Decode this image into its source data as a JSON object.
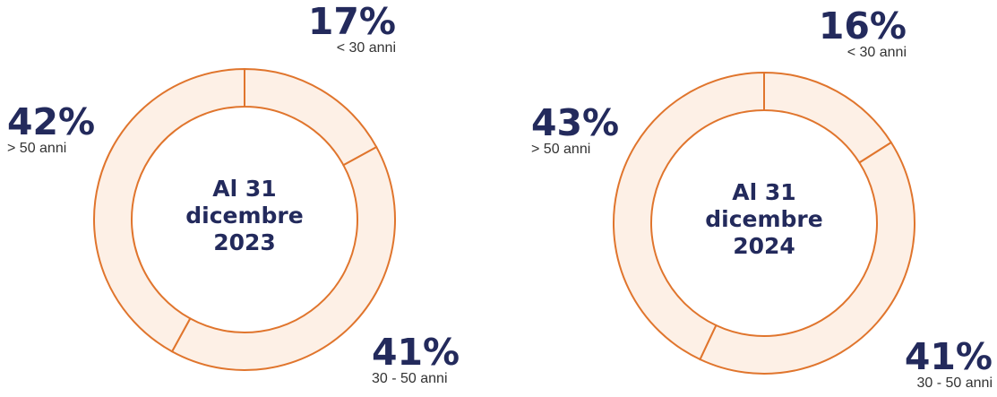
{
  "colors": {
    "ring_fill": "#fdf0e6",
    "ring_stroke": "#e0752d",
    "text_dark": "#232a5c",
    "text_gray": "#333333"
  },
  "chart_data": [
    {
      "type": "pie",
      "title": "",
      "center_text": [
        "Al 31",
        "dicembre",
        "2023"
      ],
      "categories": [
        "< 30 anni",
        "30 - 50 anni",
        "> 50 anni"
      ],
      "values": [
        17,
        41,
        42
      ],
      "value_labels": [
        "17%",
        "41%",
        "42%"
      ]
    },
    {
      "type": "pie",
      "title": "",
      "center_text": [
        "Al 31",
        "dicembre",
        "2024"
      ],
      "categories": [
        "< 30 anni",
        "30 - 50 anni",
        "> 50 anni"
      ],
      "values": [
        16,
        41,
        43
      ],
      "value_labels": [
        "16%",
        "41%",
        "43%"
      ]
    }
  ]
}
